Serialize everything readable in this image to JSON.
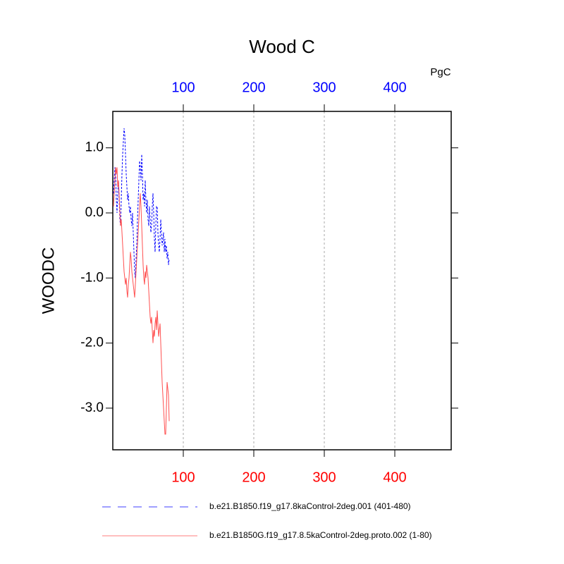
{
  "chart_data": {
    "type": "line",
    "title": "Wood C",
    "units_label": "PgC",
    "ylabel": "WOODC",
    "x": [
      1,
      2,
      3,
      4,
      5,
      6,
      7,
      8,
      9,
      10,
      11,
      12,
      13,
      14,
      15,
      16,
      17,
      18,
      19,
      20,
      21,
      22,
      23,
      24,
      25,
      26,
      27,
      28,
      29,
      30,
      31,
      32,
      33,
      34,
      35,
      36,
      37,
      38,
      39,
      40,
      41,
      42,
      43,
      44,
      45,
      46,
      47,
      48,
      49,
      50,
      51,
      52,
      53,
      54,
      55,
      56,
      57,
      58,
      59,
      60,
      61,
      62,
      63,
      64,
      65,
      66,
      67,
      68,
      69,
      70,
      71,
      72,
      73,
      74,
      75,
      76,
      77,
      78,
      79,
      80
    ],
    "series": [
      {
        "name": "b.e21.B1850.f19_g17.8kaControl-2deg.001 (401-480)",
        "color": "#0000ff",
        "dash": true,
        "values": [
          0.3,
          0.5,
          0.7,
          0.6,
          0.2,
          0.0,
          0.3,
          0.5,
          0.2,
          -0.1,
          -0.2,
          0.2,
          0.6,
          0.9,
          1.1,
          1.3,
          1.2,
          0.9,
          0.6,
          0.4,
          0.2,
          0.3,
          0.1,
          0.0,
          0.1,
          -0.1,
          -0.2,
          0.0,
          -0.3,
          -0.6,
          -0.9,
          -1.0,
          -0.7,
          -0.5,
          -0.1,
          0.2,
          0.5,
          0.8,
          0.7,
          0.5,
          0.9,
          0.6,
          0.2,
          0.3,
          0.1,
          0.5,
          0.2,
          0.0,
          0.2,
          -0.1,
          -0.2,
          0.1,
          -0.1,
          -0.3,
          -0.2,
          0.1,
          0.3,
          0.0,
          -0.4,
          -0.6,
          -0.2,
          0.1,
          0.1,
          -0.3,
          -0.5,
          -0.6,
          -0.4,
          -0.1,
          -0.3,
          -0.5,
          -0.4,
          -0.3,
          -0.6,
          -0.4,
          -0.6,
          -0.5,
          -0.7,
          -0.6,
          -0.8,
          -0.7
        ]
      },
      {
        "name": "b.e21.B1850G.f19_g17.8.5kaControl-2deg.proto.002 (1-80)",
        "color": "#ff5050",
        "dash": false,
        "values": [
          0.1,
          0.3,
          0.5,
          0.7,
          0.6,
          0.7,
          0.4,
          0.5,
          0.3,
          0.0,
          -0.2,
          -0.1,
          -0.3,
          -0.5,
          -0.7,
          -0.9,
          -1.0,
          -1.1,
          -1.0,
          -1.2,
          -1.3,
          -1.1,
          -1.0,
          -0.8,
          -0.6,
          -0.7,
          -0.9,
          -1.0,
          -1.1,
          -1.2,
          -1.3,
          -1.1,
          -0.9,
          -0.7,
          -0.5,
          -0.3,
          -0.1,
          0.1,
          0.3,
          0.1,
          -0.2,
          -0.5,
          -0.8,
          -1.0,
          -1.1,
          -0.9,
          -1.0,
          -0.8,
          -0.9,
          -1.0,
          -1.2,
          -1.4,
          -1.6,
          -1.7,
          -1.6,
          -1.8,
          -2.0,
          -1.8,
          -1.9,
          -1.7,
          -1.6,
          -1.8,
          -1.5,
          -1.7,
          -1.9,
          -1.8,
          -1.7,
          -2.0,
          -2.3,
          -2.6,
          -2.8,
          -3.0,
          -3.2,
          -3.4,
          -3.4,
          -3.0,
          -2.6,
          -2.7,
          -2.8,
          -3.2
        ]
      }
    ],
    "xlim": [
      0,
      480
    ],
    "xticks": [
      100,
      200,
      300,
      400
    ],
    "top_tick_color": "#0000ff",
    "bottom_tick_color": "#ff0000",
    "ylim": [
      -3.64,
      1.56
    ],
    "yticks": [
      {
        "value": 1,
        "label": "1.0"
      },
      {
        "value": 0,
        "label": "0.0"
      },
      {
        "value": -1,
        "label": "-1.0"
      },
      {
        "value": -2,
        "label": "-2.0"
      },
      {
        "value": -3,
        "label": "-3.0"
      }
    ],
    "grid": true
  }
}
